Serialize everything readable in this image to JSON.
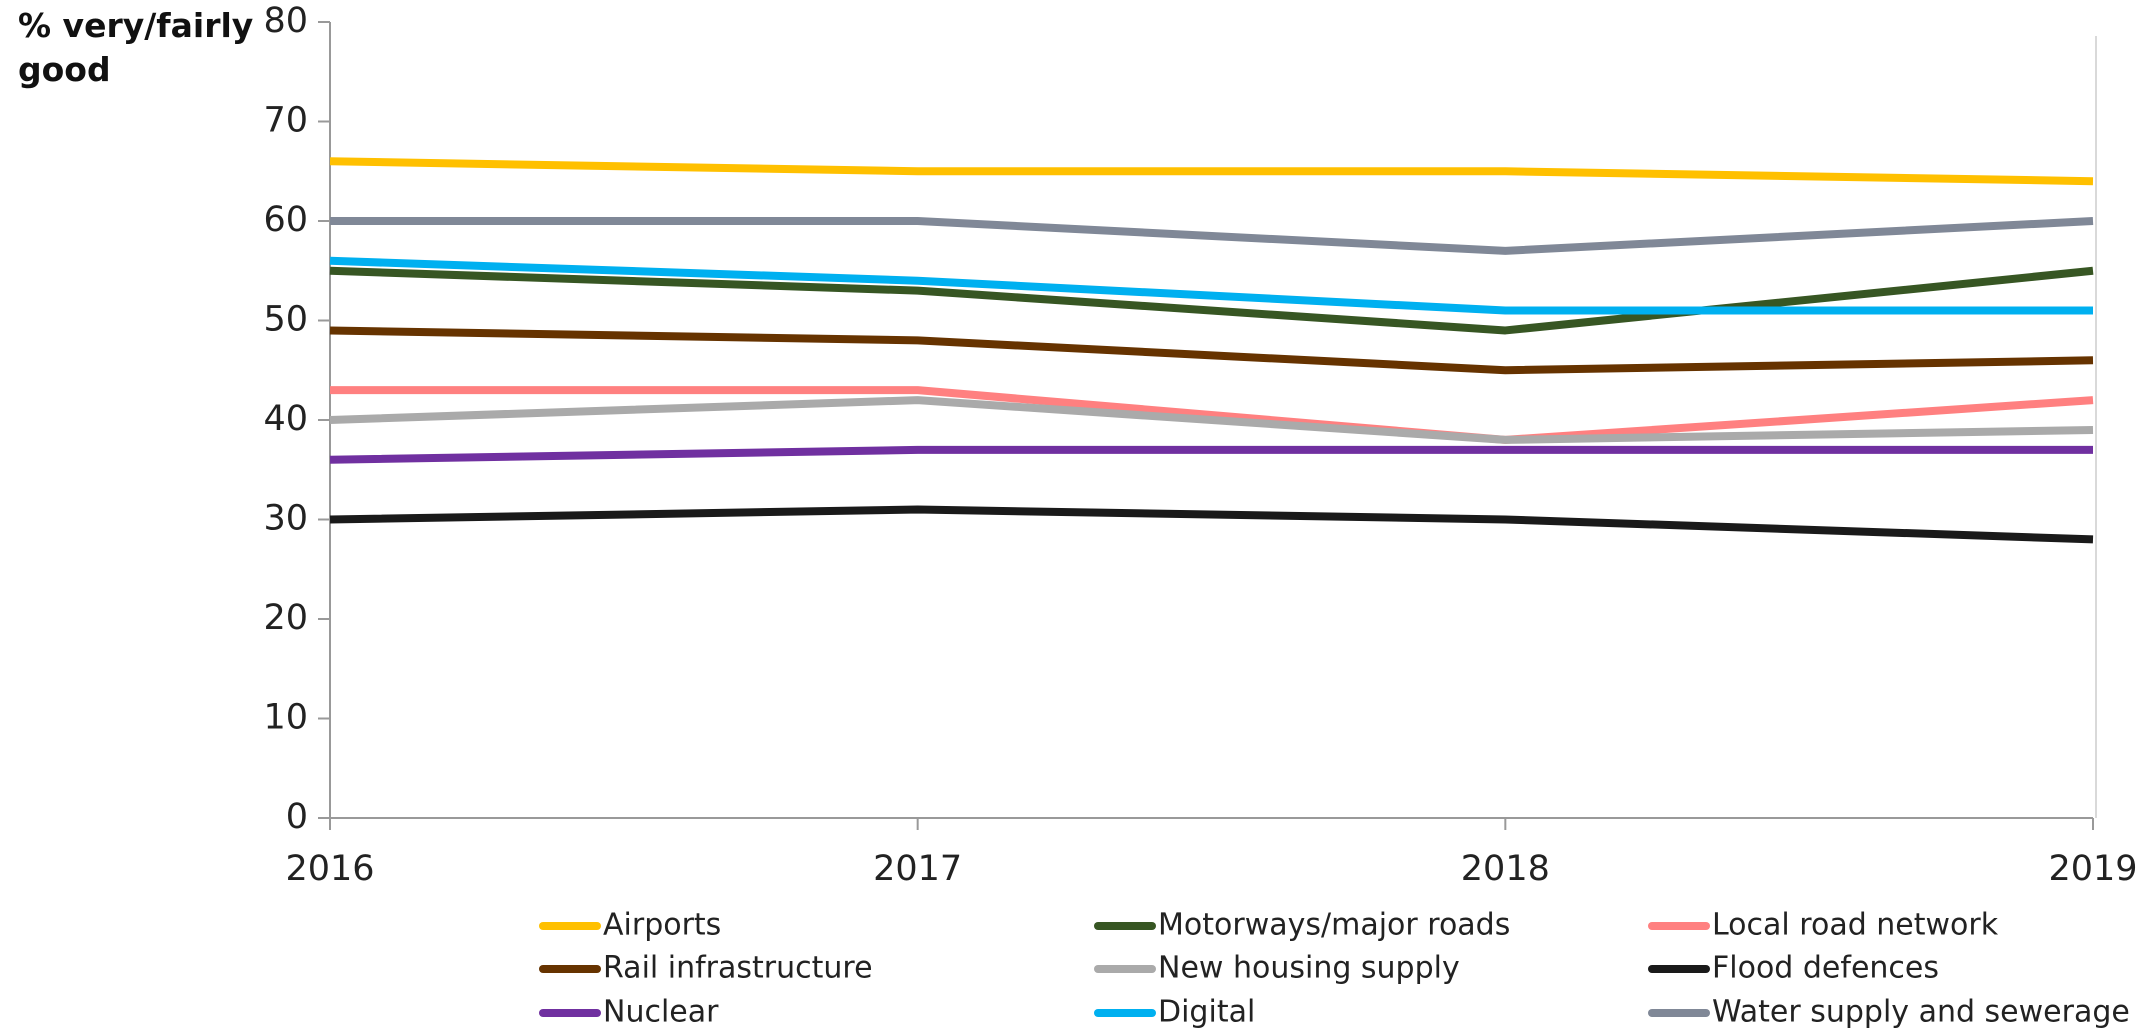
{
  "chart_data": {
    "type": "line",
    "ylabel": "% very/fairly good",
    "x": [
      2016,
      2017,
      2018,
      2019
    ],
    "xlim": [
      2016,
      2019
    ],
    "xticks": [
      2016,
      2017,
      2018,
      2019
    ],
    "ylim": [
      0,
      80
    ],
    "yticks": [
      0,
      10,
      20,
      30,
      40,
      50,
      60,
      70,
      80
    ],
    "series": [
      {
        "name": "Airports",
        "color": "#ffc000",
        "values": [
          66,
          65,
          65,
          64
        ]
      },
      {
        "name": "Motorways/major roads",
        "color": "#375623",
        "values": [
          55,
          53,
          49,
          55
        ]
      },
      {
        "name": "Local road network",
        "color": "#ff8080",
        "values": [
          43,
          43,
          38,
          42
        ]
      },
      {
        "name": "Rail infrastructure",
        "color": "#663300",
        "values": [
          49,
          48,
          45,
          46
        ]
      },
      {
        "name": "New housing supply",
        "color": "#aaaaaa",
        "values": [
          40,
          42,
          38,
          39
        ]
      },
      {
        "name": "Flood defences",
        "color": "#1a1a1a",
        "values": [
          30,
          31,
          30,
          28
        ]
      },
      {
        "name": "Nuclear",
        "color": "#7030a0",
        "values": [
          36,
          37,
          37,
          37
        ]
      },
      {
        "name": "Digital",
        "color": "#00b0f0",
        "values": [
          56,
          54,
          51,
          51
        ]
      },
      {
        "name": "Water supply and sewerage",
        "color": "#808897",
        "values": [
          60,
          60,
          57,
          60
        ]
      }
    ]
  }
}
